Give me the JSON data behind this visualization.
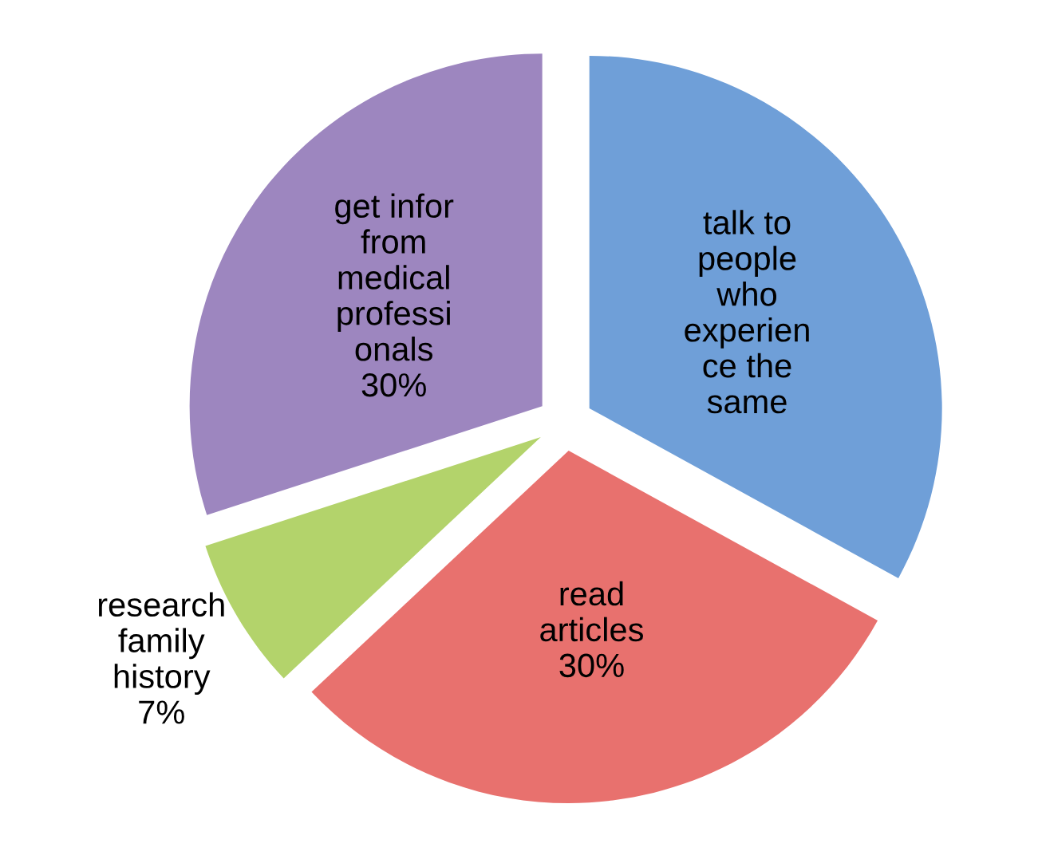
{
  "chart_data": {
    "type": "pie",
    "categories": [
      "talk to\npeople\nwho\nexperien\nce the\nsame",
      "read\narticles",
      "research\nfamily\nhistory",
      "get infor\nfrom\nmedical\nprofessi\nonals"
    ],
    "values": [
      33,
      30,
      7,
      30
    ],
    "value_labels": [
      null,
      "30%",
      "7%",
      "30%"
    ],
    "colors": [
      "#6f9fd8",
      "#e8716e",
      "#b3d36b",
      "#9d86bf"
    ]
  }
}
